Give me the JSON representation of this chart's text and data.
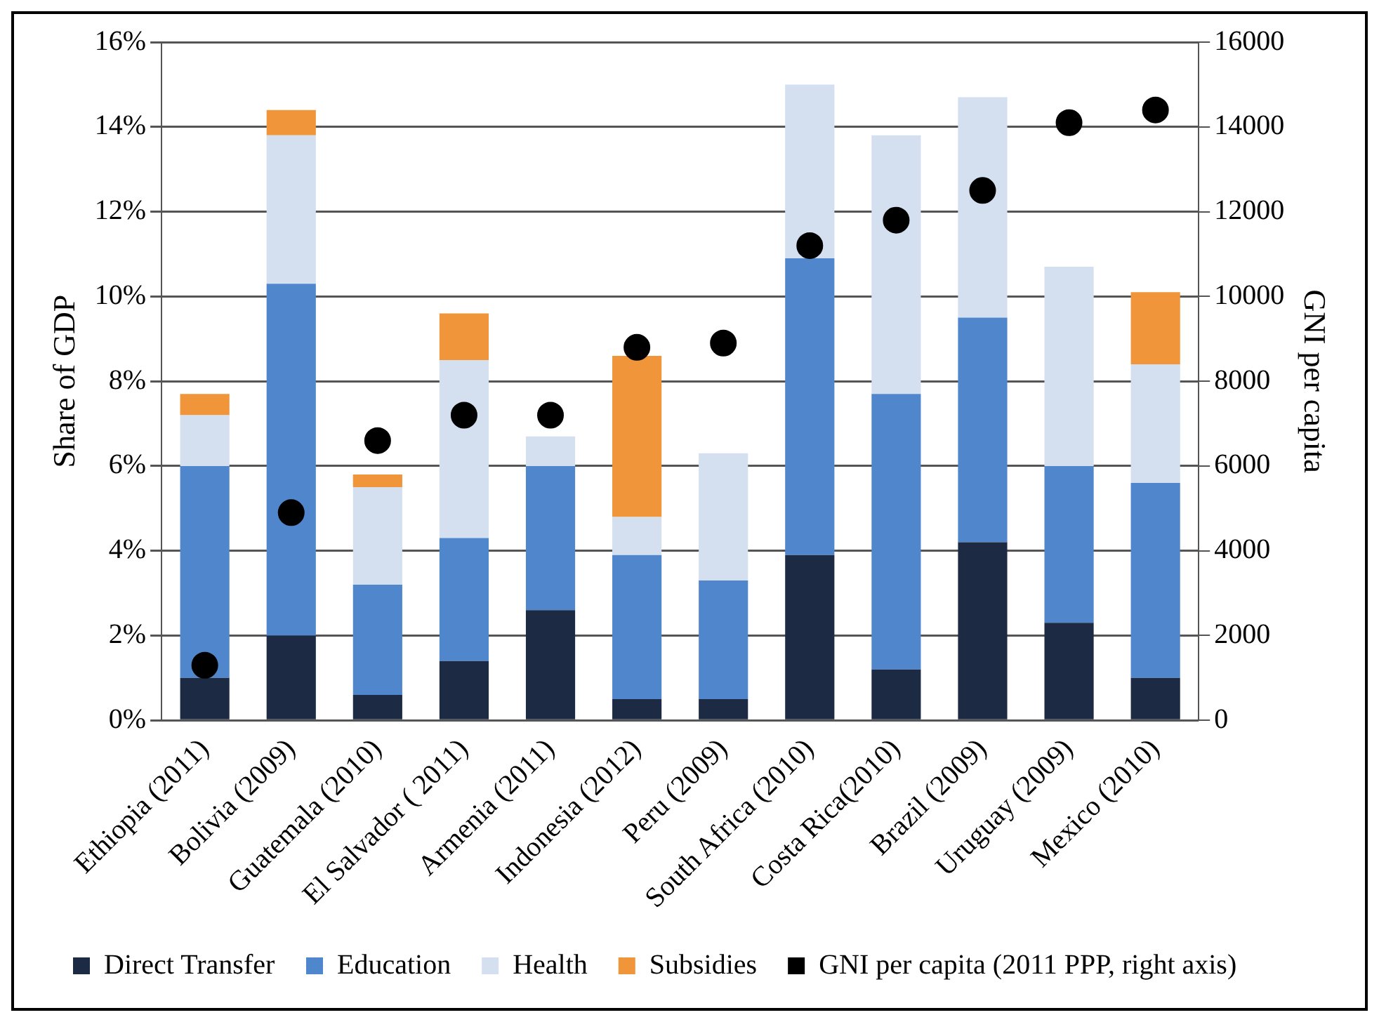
{
  "chart_data": {
    "type": "bar",
    "stacked": true,
    "ylabel": "Share of GDP",
    "y2label": "GNI per capita",
    "categories": [
      "Ethiopia (2011)",
      "Bolivia (2009)",
      "Guatemala (2010)",
      "El Salvador ( 2011)",
      "Armenia (2011)",
      "Indonesia (2012)",
      "Peru (2009)",
      "South Africa (2010)",
      "Costa Rica(2010)",
      "Brazil (2009)",
      "Uruguay (2009)",
      "Mexico (2010)"
    ],
    "series": [
      {
        "name": "Direct Transfer",
        "color": "#1c2a44",
        "values": [
          1.0,
          2.0,
          0.6,
          1.4,
          2.6,
          0.5,
          0.5,
          3.9,
          1.2,
          4.2,
          2.3,
          1.0
        ]
      },
      {
        "name": "Education",
        "color": "#4f86cc",
        "values": [
          5.0,
          8.3,
          2.6,
          2.9,
          3.4,
          3.4,
          2.8,
          7.0,
          6.5,
          5.3,
          3.7,
          4.6
        ]
      },
      {
        "name": "Health",
        "color": "#d4dff0",
        "values": [
          1.2,
          3.5,
          2.3,
          4.2,
          0.7,
          0.9,
          3.0,
          4.1,
          6.1,
          5.2,
          4.7,
          2.8
        ]
      },
      {
        "name": "Subsidies",
        "color": "#f0953a",
        "values": [
          0.5,
          0.6,
          0.3,
          1.1,
          null,
          3.8,
          null,
          null,
          null,
          null,
          null,
          1.7
        ]
      },
      {
        "name": "GNI per capita (2011 PPP, right axis)",
        "type": "scatter",
        "axis": "y2",
        "color": "#000000",
        "x": [
          "Ethiopia (2011)",
          "Bolivia (2009)",
          "Guatemala (2010)",
          "El Salvador ( 2011)",
          "Armenia (2011)",
          "Indonesia (2012)",
          "Peru (2009)",
          "South Africa (2010)",
          "Costa Rica(2010)",
          "Brazil (2009)",
          "Uruguay (2009)",
          "Mexico (2010)"
        ],
        "values": [
          1300,
          4900,
          6600,
          7200,
          7200,
          8800,
          8900,
          11200,
          11800,
          12500,
          14100,
          14400
        ]
      }
    ],
    "ylim": [
      0,
      16
    ],
    "yticks": [
      {
        "value": 0,
        "label": "0%"
      },
      {
        "value": 2,
        "label": "2%"
      },
      {
        "value": 4,
        "label": "4%"
      },
      {
        "value": 6,
        "label": "6%"
      },
      {
        "value": 8,
        "label": "8%"
      },
      {
        "value": 10,
        "label": "10%"
      },
      {
        "value": 12,
        "label": "12%"
      },
      {
        "value": 14,
        "label": "14%"
      },
      {
        "value": 16,
        "label": "16%"
      }
    ],
    "y2lim": [
      0,
      16000
    ],
    "y2ticks": [
      0,
      2000,
      4000,
      6000,
      8000,
      10000,
      12000,
      14000,
      16000
    ],
    "grid": "y",
    "legend": "bottom",
    "marker": "circle"
  }
}
